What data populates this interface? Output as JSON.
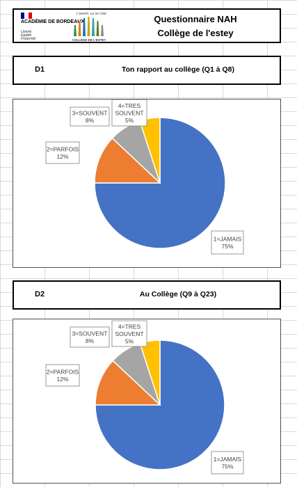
{
  "header": {
    "academy_logo": {
      "name": "ACADÉMIE DE BORDEAUX",
      "motto": [
        "Liberté",
        "Égalité",
        "Fraternité"
      ],
      "flag_colors": [
        "#000091",
        "#ffffff",
        "#e1000f"
      ]
    },
    "college_logo": {
      "tagline": "L'avenir, ça se crée",
      "name": "COLLÈGE DE L'ESTEY",
      "bar_colors": [
        "#2e8b57",
        "#e07b1a",
        "#1f6fb5",
        "#c8a415",
        "#2aa39a",
        "#5e7f2e",
        "#8a8a8a"
      ]
    },
    "title_line1": "Questionnaire NAH",
    "title_line2": "Collège de l'estey"
  },
  "sections": [
    {
      "code": "D1",
      "title": "Ton rapport au collège (Q1 à Q8)"
    },
    {
      "code": "D2",
      "title": "Au Collège (Q9 à Q23)"
    }
  ],
  "chart_data": [
    {
      "type": "pie",
      "title": "",
      "slices": [
        {
          "label": "1=JAMAIS",
          "value": 75,
          "display": "75%",
          "color": "#4472c4"
        },
        {
          "label": "2=PARFOIS",
          "value": 12,
          "display": "12%",
          "color": "#ed7d31"
        },
        {
          "label": "3=SOUVENT",
          "value": 8,
          "display": "8%",
          "color": "#a5a5a5"
        },
        {
          "label": "4=TRES SOUVENT",
          "value": 5,
          "display": "5%",
          "color": "#ffc000"
        }
      ]
    },
    {
      "type": "pie",
      "title": "",
      "slices": [
        {
          "label": "1=JAMAIS",
          "value": 75,
          "display": "75%",
          "color": "#4472c4"
        },
        {
          "label": "2=PARFOIS",
          "value": 12,
          "display": "12%",
          "color": "#ed7d31"
        },
        {
          "label": "3=SOUVENT",
          "value": 8,
          "display": "8%",
          "color": "#a5a5a5"
        },
        {
          "label": "4=TRES SOUVENT",
          "value": 5,
          "display": "5%",
          "color": "#ffc000"
        }
      ]
    }
  ]
}
